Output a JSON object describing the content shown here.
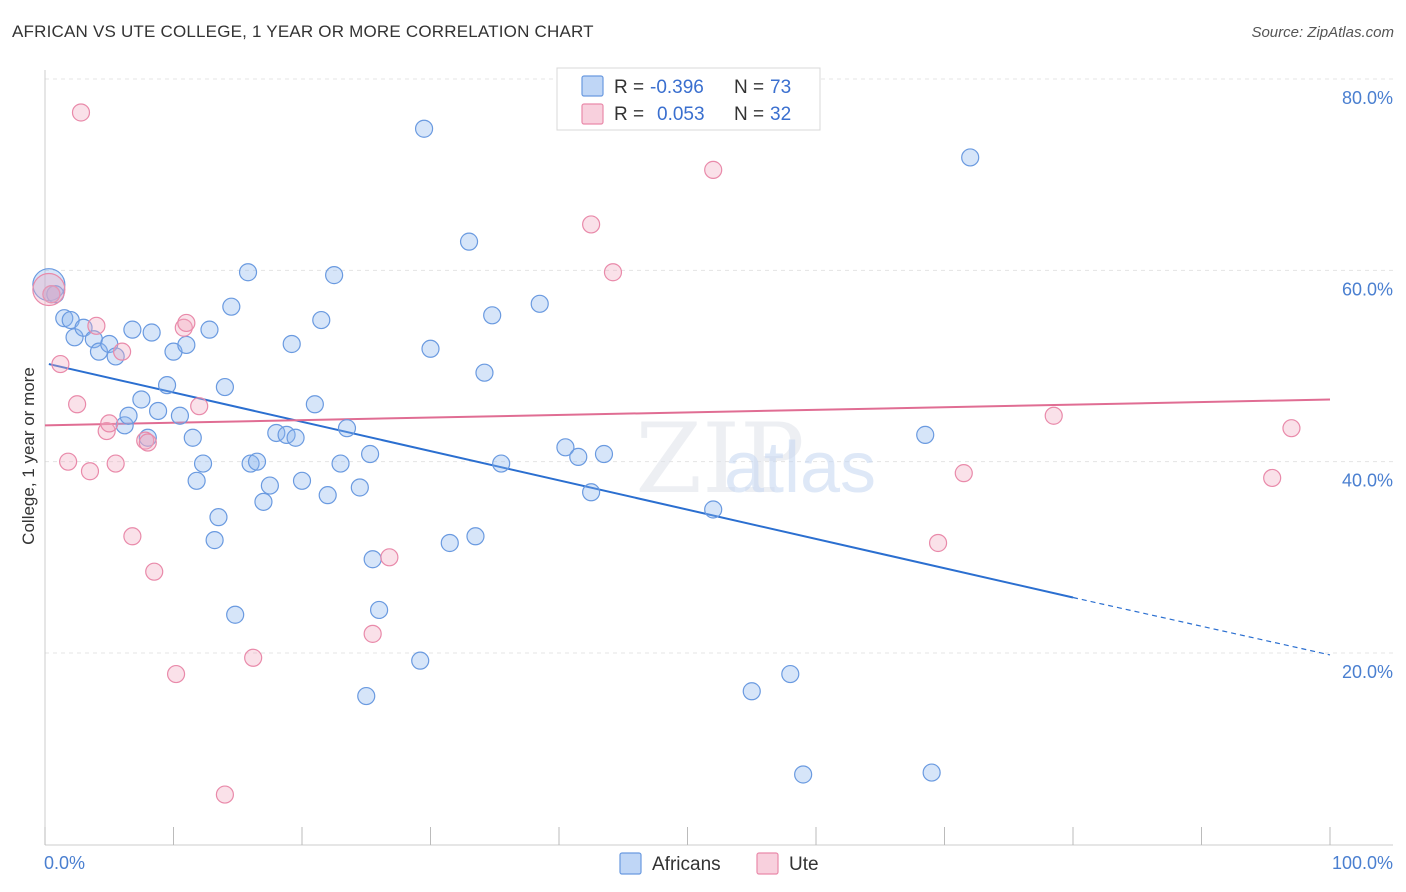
{
  "chart_data": {
    "type": "scatter",
    "title": "AFRICAN VS UTE COLLEGE, 1 YEAR OR MORE CORRELATION CHART",
    "source": "Source: ZipAtlas.com",
    "xlabel": "",
    "ylabel": "College, 1 year or more",
    "xlim": [
      0,
      100
    ],
    "ylim": [
      0,
      83
    ],
    "x_tick_labels": [
      "0.0%",
      "100.0%"
    ],
    "y_ticks": [
      20,
      40,
      60,
      80
    ],
    "y_tick_labels": [
      "20.0%",
      "40.0%",
      "60.0%",
      "80.0%"
    ],
    "watermark": "ZIPatlas",
    "legend": {
      "rows": [
        {
          "r_label": "R =",
          "r_value": "-0.396",
          "n_label": "N =",
          "n_value": "73",
          "color": "#8ab4ee"
        },
        {
          "r_label": "R =",
          "r_value": "0.053",
          "n_label": "N =",
          "n_value": "32",
          "color": "#f2a9c1"
        }
      ]
    },
    "bottom_legend": [
      "Africans",
      "Ute"
    ],
    "series": [
      {
        "name": "Africans",
        "color": "#8ab4ee",
        "stroke": "#6a9ae0",
        "trend": {
          "x0": 0.3,
          "y0": 50.2,
          "x1": 80,
          "y1": 25.8,
          "dash_to_x": 100,
          "dash_to_y": 19.8,
          "color": "#2b6fd0"
        },
        "points": [
          [
            0.3,
            58.5
          ],
          [
            0.8,
            57.5
          ],
          [
            1.5,
            55.0
          ],
          [
            2.0,
            54.8
          ],
          [
            2.3,
            53.0
          ],
          [
            3.0,
            54.0
          ],
          [
            3.8,
            52.8
          ],
          [
            4.2,
            51.5
          ],
          [
            5.0,
            52.3
          ],
          [
            5.5,
            51.0
          ],
          [
            6.2,
            43.8
          ],
          [
            6.5,
            44.8
          ],
          [
            6.8,
            53.8
          ],
          [
            7.5,
            46.5
          ],
          [
            8.0,
            42.5
          ],
          [
            8.3,
            53.5
          ],
          [
            8.8,
            45.3
          ],
          [
            9.5,
            48.0
          ],
          [
            10.0,
            51.5
          ],
          [
            10.5,
            44.8
          ],
          [
            11.0,
            52.2
          ],
          [
            11.5,
            42.5
          ],
          [
            11.8,
            38.0
          ],
          [
            12.3,
            39.8
          ],
          [
            12.8,
            53.8
          ],
          [
            13.2,
            31.8
          ],
          [
            13.5,
            34.2
          ],
          [
            14.0,
            47.8
          ],
          [
            14.5,
            56.2
          ],
          [
            14.8,
            24.0
          ],
          [
            15.8,
            59.8
          ],
          [
            16.0,
            39.8
          ],
          [
            16.5,
            40.0
          ],
          [
            17.0,
            35.8
          ],
          [
            17.5,
            37.5
          ],
          [
            18.0,
            43.0
          ],
          [
            18.8,
            42.8
          ],
          [
            19.2,
            52.3
          ],
          [
            19.5,
            42.5
          ],
          [
            20.0,
            38.0
          ],
          [
            21.0,
            46.0
          ],
          [
            21.5,
            54.8
          ],
          [
            22.0,
            36.5
          ],
          [
            22.5,
            59.5
          ],
          [
            23.0,
            39.8
          ],
          [
            23.5,
            43.5
          ],
          [
            24.5,
            37.3
          ],
          [
            25.0,
            15.5
          ],
          [
            25.3,
            40.8
          ],
          [
            25.5,
            29.8
          ],
          [
            26.0,
            24.5
          ],
          [
            29.2,
            19.2
          ],
          [
            29.5,
            74.8
          ],
          [
            30.0,
            51.8
          ],
          [
            31.5,
            31.5
          ],
          [
            33.0,
            63.0
          ],
          [
            33.5,
            32.2
          ],
          [
            34.2,
            49.3
          ],
          [
            34.8,
            55.3
          ],
          [
            35.5,
            39.8
          ],
          [
            38.5,
            56.5
          ],
          [
            40.5,
            41.5
          ],
          [
            41.5,
            40.5
          ],
          [
            42.5,
            36.8
          ],
          [
            43.5,
            40.8
          ],
          [
            52.0,
            35.0
          ],
          [
            55.0,
            16.0
          ],
          [
            58.0,
            17.8
          ],
          [
            59.0,
            7.3
          ],
          [
            68.5,
            42.8
          ],
          [
            69.0,
            7.5
          ],
          [
            72.0,
            71.8
          ],
          [
            0.5,
            57.5
          ]
        ]
      },
      {
        "name": "Ute",
        "color": "#f2a9c1",
        "stroke": "#e98aaa",
        "trend": {
          "x0": 0,
          "y0": 43.8,
          "x1": 100,
          "y1": 46.5,
          "color": "#e06d93"
        },
        "points": [
          [
            0.5,
            57.5
          ],
          [
            1.2,
            50.2
          ],
          [
            1.8,
            40.0
          ],
          [
            2.5,
            46.0
          ],
          [
            2.8,
            76.5
          ],
          [
            3.5,
            39.0
          ],
          [
            4.0,
            54.2
          ],
          [
            4.8,
            43.2
          ],
          [
            5.0,
            44.0
          ],
          [
            5.5,
            39.8
          ],
          [
            6.0,
            51.5
          ],
          [
            6.8,
            32.2
          ],
          [
            7.8,
            42.2
          ],
          [
            8.5,
            28.5
          ],
          [
            10.2,
            17.8
          ],
          [
            10.8,
            54.0
          ],
          [
            11.0,
            54.5
          ],
          [
            12.0,
            45.8
          ],
          [
            14.0,
            5.2
          ],
          [
            16.2,
            19.5
          ],
          [
            25.5,
            22.0
          ],
          [
            26.8,
            30.0
          ],
          [
            42.5,
            64.8
          ],
          [
            44.2,
            59.8
          ],
          [
            52.0,
            70.5
          ],
          [
            69.5,
            31.5
          ],
          [
            71.5,
            38.8
          ],
          [
            78.5,
            44.8
          ],
          [
            95.5,
            38.3
          ],
          [
            97.0,
            43.5
          ],
          [
            8.0,
            42.0
          ],
          [
            0.3,
            58.0
          ]
        ]
      }
    ]
  }
}
